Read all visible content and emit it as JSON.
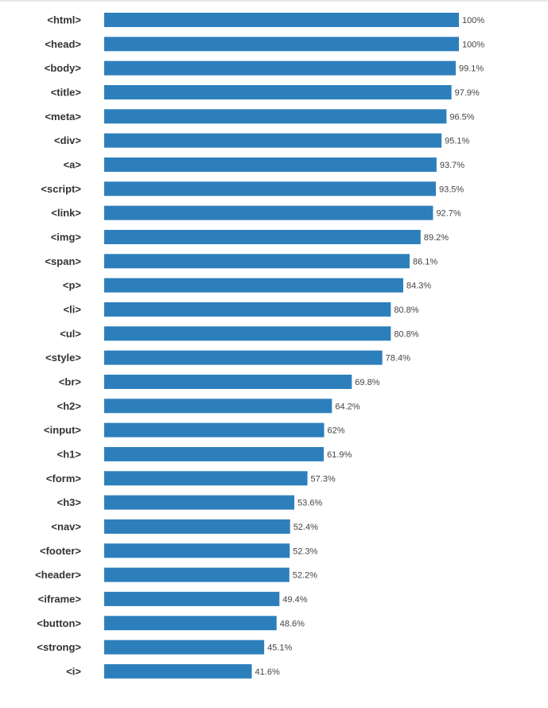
{
  "chart_data": {
    "type": "bar",
    "orientation": "horizontal",
    "title": "",
    "xlabel": "",
    "ylabel": "",
    "xlim": [
      0,
      100
    ],
    "bar_color": "#2d7fbc",
    "value_suffix": "%",
    "categories": [
      "<html>",
      "<head>",
      "<body>",
      "<title>",
      "<meta>",
      "<div>",
      "<a>",
      "<script>",
      "<link>",
      "<img>",
      "<span>",
      "<p>",
      "<li>",
      "<ul>",
      "<style>",
      "<br>",
      "<h2>",
      "<input>",
      "<h1>",
      "<form>",
      "<h3>",
      "<nav>",
      "<footer>",
      "<header>",
      "<iframe>",
      "<button>",
      "<strong>",
      "<i>"
    ],
    "values": [
      100,
      100,
      99.1,
      97.9,
      96.5,
      95.1,
      93.7,
      93.5,
      92.7,
      89.2,
      86.1,
      84.3,
      80.8,
      80.8,
      78.4,
      69.8,
      64.2,
      62,
      61.9,
      57.3,
      53.6,
      52.4,
      52.3,
      52.2,
      49.4,
      48.6,
      45.1,
      41.6
    ]
  }
}
